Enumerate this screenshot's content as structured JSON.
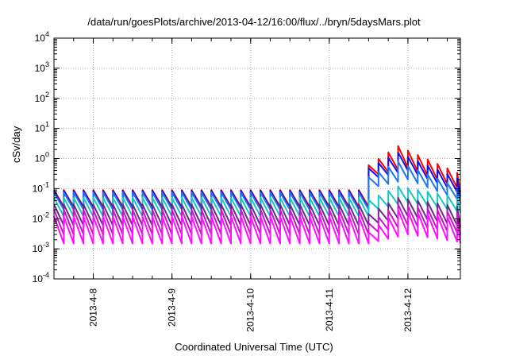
{
  "chart_data": {
    "type": "line",
    "title": "/data/run/goesPlots/archive/2013-04-12/16:00/flux/../bryn/5daysMars.plot",
    "xlabel": "Coordinated Universal Time (UTC)",
    "ylabel": "cSv/day",
    "y_scale": "log",
    "ylim": [
      0.0001,
      10000
    ],
    "y_ticks": [
      {
        "base": "10",
        "exp": "-4"
      },
      {
        "base": "10",
        "exp": "-3"
      },
      {
        "base": "10",
        "exp": "-2"
      },
      {
        "base": "10",
        "exp": "-1"
      },
      {
        "base": "10",
        "exp": "0"
      },
      {
        "base": "10",
        "exp": "1"
      },
      {
        "base": "10",
        "exp": "2"
      },
      {
        "base": "10",
        "exp": "3"
      },
      {
        "base": "10",
        "exp": "4"
      }
    ],
    "xlim": [
      "2013-04-07 12:00",
      "2013-04-12 16:00"
    ],
    "x_ticks": [
      "2013-4-8",
      "2013-4-9",
      "2013-4-10",
      "2013-4-11",
      "2013-4-12"
    ],
    "grid": true,
    "legend": "none",
    "period_hours": 3,
    "event_start": "2013-04-11 12:00",
    "peak_time": "2013-04-11 21:00",
    "series": [
      {
        "color": "#ff0000",
        "baseline": {
          "peak": 0.09,
          "trough": 0.025
        },
        "event": {
          "peak": 2.6,
          "trough": 0.5,
          "end_peak": 0.3,
          "end_trough": 0.07
        }
      },
      {
        "color": "#1010e0",
        "baseline": {
          "peak": 0.085,
          "trough": 0.022
        },
        "event": {
          "peak": 1.6,
          "trough": 0.4,
          "end_peak": 0.2,
          "end_trough": 0.05
        }
      },
      {
        "color": "#1f78e8",
        "baseline": {
          "peak": 0.075,
          "trough": 0.02
        },
        "event": {
          "peak": 0.8,
          "trough": 0.2,
          "end_peak": 0.1,
          "end_trough": 0.03
        }
      },
      {
        "color": "#19c4c4",
        "baseline": {
          "peak": 0.05,
          "trough": 0.012
        },
        "event": {
          "peak": 0.12,
          "trough": 0.035,
          "end_peak": 0.05,
          "end_trough": 0.015
        }
      },
      {
        "color": "#6a2a8a",
        "baseline": {
          "peak": 0.03,
          "trough": 0.006
        },
        "event": {
          "peak": 0.05,
          "trough": 0.012,
          "end_peak": 0.025,
          "end_trough": 0.005
        }
      },
      {
        "color": "#c815c8",
        "baseline": {
          "peak": 0.02,
          "trough": 0.003
        },
        "event": {
          "peak": 0.03,
          "trough": 0.006,
          "end_peak": 0.015,
          "end_trough": 0.003
        }
      },
      {
        "color": "#ff10ff",
        "baseline": {
          "peak": 0.012,
          "trough": 0.0015
        },
        "event": {
          "peak": 0.02,
          "trough": 0.003,
          "end_peak": 0.01,
          "end_trough": 0.0015
        }
      }
    ]
  }
}
